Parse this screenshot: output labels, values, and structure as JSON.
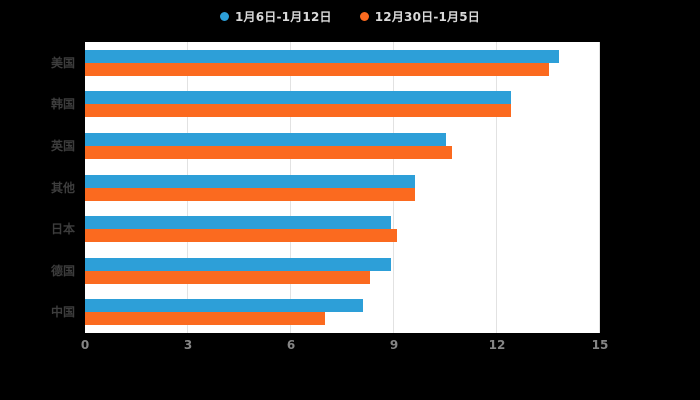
{
  "legend": {
    "items": [
      {
        "label": "1月6日-1月12日",
        "color": "#2d9fd8"
      },
      {
        "label": "12月30日-1月5日",
        "color": "#fb6a1f"
      }
    ]
  },
  "colors": {
    "background": "#000000",
    "plot_background": "#ffffff",
    "grid": "#e2e2e2",
    "series1": "#2d9fd8",
    "series2": "#fb6a1f",
    "legend_text": "#d9d9d9",
    "category_text": "#3d3d3d",
    "tick_text": "#858585"
  },
  "chart_data": {
    "type": "bar",
    "orientation": "horizontal",
    "title": "",
    "xlabel": "",
    "ylabel": "",
    "categories": [
      "美国",
      "韩国",
      "英国",
      "其他",
      "日本",
      "德国",
      "中国"
    ],
    "series": [
      {
        "name": "1月6日-1月12日",
        "color": "#2d9fd8",
        "values": [
          13.8,
          12.4,
          10.5,
          9.6,
          8.9,
          8.9,
          8.1
        ]
      },
      {
        "name": "12月30日-1月5日",
        "color": "#fb6a1f",
        "values": [
          13.5,
          12.4,
          10.7,
          9.6,
          9.1,
          8.3,
          7.0
        ]
      }
    ],
    "xlim": [
      0,
      15
    ],
    "xticks": [
      0,
      3,
      6,
      9,
      12,
      15
    ],
    "grid": true,
    "legend_position": "top"
  }
}
